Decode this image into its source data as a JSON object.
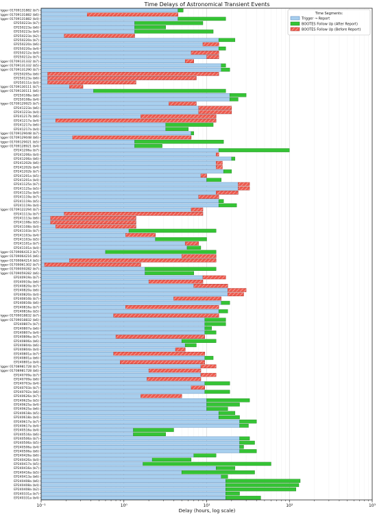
{
  "chart_data": {
    "type": "bar",
    "orientation": "horizontal",
    "title": "Time Delays of Astronomical Transient Events",
    "xlabel": "Delay (hours, log scale)",
    "ylabel": "",
    "x_scale": "log",
    "xlim": [
      0.1,
      1000
    ],
    "x_ticks": [
      0.1,
      1,
      10,
      100,
      1000
    ],
    "x_tick_labels": [
      "10⁻¹",
      "10⁰",
      "10¹",
      "10²",
      "10³"
    ],
    "grid": true,
    "legend": {
      "title": "Time Segments:",
      "position": "top-right",
      "entries": [
        {
          "label": "Trigger → Report",
          "color": "#a8cfee",
          "edge": "#4d7fb3",
          "hatch": false
        },
        {
          "label": "BOOTES Follow Up (After Report)",
          "color": "#35c435",
          "edge": "#1d801d",
          "hatch": false
        },
        {
          "label": "BOOTES Follow Up (Before Report)",
          "color": "#ee5a4e",
          "edge": "#a83228",
          "hatch": true
        }
      ]
    },
    "colors": {
      "report": "#a8cfee",
      "report_edge": "#4d7fb3",
      "after": "#35c435",
      "after_edge": "#1d801d",
      "before": "#ee5a4e",
      "before_edge": "#a83228",
      "hatch": "#f7b8b2"
    },
    "events": [
      {
        "label": "Trigger 01709131882 (b7)",
        "report": 4.5,
        "after": 5.2,
        "before": null
      },
      {
        "label": "Trigger 01709131882 (b6)",
        "report": 4.5,
        "after": null,
        "before": 0.36
      },
      {
        "label": "Trigger 01709131882 (b4)",
        "report": 4.5,
        "after": 17,
        "before": null
      },
      {
        "label": "EP250223a (b7)",
        "report": 1.35,
        "after": 9,
        "before": null
      },
      {
        "label": "EP250223a (b6)",
        "report": 1.35,
        "after": 3.2,
        "before": null
      },
      {
        "label": "EP250223a (b4)",
        "report": 1.35,
        "after": 12,
        "before": null
      },
      {
        "label": "EP250223a (b2)",
        "report": 1.35,
        "after": null,
        "before": 0.19
      },
      {
        "label": "EP250220a (b7)",
        "report": 14,
        "after": 22,
        "before": null
      },
      {
        "label": "EP250220a (b6)",
        "report": 14,
        "after": null,
        "before": 9
      },
      {
        "label": "EP250220a (b4)",
        "report": 14,
        "after": 17,
        "before": null
      },
      {
        "label": "EP250212a (b4)",
        "report": 14,
        "after": null,
        "before": 6.5
      },
      {
        "label": "EP250212a (b7)",
        "report": 14,
        "after": null,
        "before": 10
      },
      {
        "label": "Trigger 01709131332 (b7)",
        "report": 7,
        "after": null,
        "before": 5.5
      },
      {
        "label": "Trigger 01709131332 (b5)",
        "report": 15,
        "after": 17,
        "before": null
      },
      {
        "label": "Trigger 01709131290 (b7)",
        "report": 15,
        "after": 19,
        "before": null
      },
      {
        "label": "EP250205a (b6)",
        "report": 14,
        "after": null,
        "before": 0.12
      },
      {
        "label": "EP250123a (b6)",
        "report": 7.5,
        "after": null,
        "before": 0.12
      },
      {
        "label": "EP250111a (b4)",
        "report": 1.4,
        "after": null,
        "before": 0.12
      },
      {
        "label": "Trigger 01709130111 (b7)",
        "report": 0.32,
        "after": null,
        "before": 0.22
      },
      {
        "label": "Trigger 01709130111 (b6)",
        "report": 0.43,
        "after": 17,
        "before": null
      },
      {
        "label": "EP250108a (b6)",
        "report": 19,
        "after": 30,
        "before": null
      },
      {
        "label": "EP250108a (b4)",
        "report": 19,
        "after": 24,
        "before": null
      },
      {
        "label": "Trigger 01709129925 (b7)",
        "report": 7.5,
        "after": null,
        "before": 3.5
      },
      {
        "label": "EP241223a (b6)",
        "report": 20,
        "after": null,
        "before": 8
      },
      {
        "label": "EP241223a (b4)",
        "report": 20,
        "after": null,
        "before": 8
      },
      {
        "label": "EP241217b (b6)",
        "report": 13,
        "after": null,
        "before": 1.6
      },
      {
        "label": "EP241217a (b4)",
        "report": 13,
        "after": null,
        "before": 0.15
      },
      {
        "label": "EP241217a (b6)",
        "report": 3.2,
        "after": 12,
        "before": null
      },
      {
        "label": "EP241217a (b4)",
        "report": 3.2,
        "after": 6,
        "before": null
      },
      {
        "label": "Trigger 01709129048 (b7)",
        "report": 6.5,
        "after": 7,
        "before": null
      },
      {
        "label": "Trigger 01709129048 (b6)",
        "report": 6.5,
        "after": null,
        "before": 0.24
      },
      {
        "label": "Trigger 01709129021 (b5)",
        "report": 1.35,
        "after": 16,
        "before": null
      },
      {
        "label": "Trigger 01709128921 (b4)",
        "report": 1.35,
        "after": 2.9,
        "before": null
      },
      {
        "label": "EP241206a (b7)",
        "report": 14,
        "after": 100,
        "before": null
      },
      {
        "label": "EP241206a (b4)",
        "report": 14,
        "after": null,
        "before": 13
      },
      {
        "label": "EP241206a (b6)",
        "report": 20,
        "after": 22,
        "before": null
      },
      {
        "label": "EP241202b (b6)",
        "report": 13,
        "after": null,
        "before": 15.5
      },
      {
        "label": "EP241202b (b4)",
        "report": 13,
        "after": null,
        "before": 15.5
      },
      {
        "label": "EP241202b (b7)",
        "report": 16,
        "after": 20,
        "before": null
      },
      {
        "label": "EP241201a (b5)",
        "report": 10,
        "after": null,
        "before": 8.5
      },
      {
        "label": "EP241201a (b4)",
        "report": 10,
        "after": 15,
        "before": null
      },
      {
        "label": "EP241125a (b7)",
        "report": 24,
        "after": null,
        "before": 33
      },
      {
        "label": "EP241125a (b5)",
        "report": 24,
        "after": null,
        "before": 33
      },
      {
        "label": "EP241125a (b4)",
        "report": 24,
        "after": null,
        "before": 13
      },
      {
        "label": "EP241119a (b7)",
        "report": 14,
        "after": null,
        "before": 8
      },
      {
        "label": "EP241119a (b5)",
        "report": 14,
        "after": 16,
        "before": null
      },
      {
        "label": "EP241119a (b4)",
        "report": 14,
        "after": 23,
        "before": null
      },
      {
        "label": "Trigger 01709122294 (b7)",
        "report": 9,
        "after": null,
        "before": 6.5
      },
      {
        "label": "EP241113a (b7)",
        "report": 9,
        "after": null,
        "before": 0.19
      },
      {
        "label": "EP241113a (b6)",
        "report": 1.4,
        "after": null,
        "before": 0.13
      },
      {
        "label": "EP241108a (b5)",
        "report": 1.4,
        "after": null,
        "before": 0.13
      },
      {
        "label": "EP241108a (b4)",
        "report": 1.4,
        "after": null,
        "before": 0.15
      },
      {
        "label": "EP241103a (b7)",
        "report": 1.15,
        "after": 13,
        "before": null
      },
      {
        "label": "EP241103a (b4)",
        "report": 2.4,
        "after": null,
        "before": 1.05
      },
      {
        "label": "EP241103a (b5)",
        "report": 2.4,
        "after": 10,
        "before": null
      },
      {
        "label": "EP241101a (b7)",
        "report": 8,
        "after": null,
        "before": 5.5
      },
      {
        "label": "EP241101a (b4)",
        "report": 5.8,
        "after": 8.5,
        "before": null
      },
      {
        "label": "Trigger 01709064313 (b7)",
        "report": 0.6,
        "after": 13,
        "before": null
      },
      {
        "label": "Trigger 01709064216 (b6)",
        "report": 13,
        "after": null,
        "before": 5
      },
      {
        "label": "Trigger 01709064214 (b5)",
        "report": 13,
        "after": null,
        "before": 0.22
      },
      {
        "label": "Trigger 01709061302 (b7)",
        "report": 1.6,
        "after": null,
        "before": 0.11
      },
      {
        "label": "Trigger 01709059282 (b7)",
        "report": 1.8,
        "after": 13,
        "before": null
      },
      {
        "label": "Trigger 01709059282 (b6)",
        "report": 1.8,
        "after": 7,
        "before": null
      },
      {
        "label": "EP240919a (b7)",
        "report": 9,
        "after": null,
        "before": 17
      },
      {
        "label": "EP240919a (b6)",
        "report": 9,
        "after": null,
        "before": 2
      },
      {
        "label": "EP240820a (b7)",
        "report": 18,
        "after": null,
        "before": 7
      },
      {
        "label": "EP240820a (b6)",
        "report": 18,
        "after": null,
        "before": 30
      },
      {
        "label": "EP240820a (b4)",
        "report": 18,
        "after": null,
        "before": 28
      },
      {
        "label": "EP240816b (b7)",
        "report": 15,
        "after": null,
        "before": 4
      },
      {
        "label": "EP240816b (b6)",
        "report": 15,
        "after": 19,
        "before": null
      },
      {
        "label": "EP240816a (b7)",
        "report": 14,
        "after": null,
        "before": 1.05
      },
      {
        "label": "EP240816a (b5)",
        "report": 14,
        "after": 18,
        "before": null
      },
      {
        "label": "Trigger 01709018832 (b7)",
        "report": 14,
        "after": null,
        "before": 0.75
      },
      {
        "label": "Trigger 01709018832 (b6)",
        "report": 9.5,
        "after": 17,
        "before": null
      },
      {
        "label": "EP240807a (b7)",
        "report": 9.5,
        "after": 17,
        "before": null
      },
      {
        "label": "EP240807a (b6)",
        "report": 9.5,
        "after": 11.5,
        "before": null
      },
      {
        "label": "EP240807a (b4)",
        "report": 9.5,
        "after": 13,
        "before": null
      },
      {
        "label": "EP240806a (b7)",
        "report": 9.5,
        "after": null,
        "before": 0.8
      },
      {
        "label": "EP240806a (b6)",
        "report": 5,
        "after": 13,
        "before": null
      },
      {
        "label": "EP240804a (b6)",
        "report": 5.5,
        "after": 7.5,
        "before": null
      },
      {
        "label": "EP240804a (b4)",
        "report": 5.5,
        "after": null,
        "before": 4.2
      },
      {
        "label": "EP240801a (b7)",
        "report": 9.5,
        "after": null,
        "before": 0.75
      },
      {
        "label": "EP240801a (b6)",
        "report": 9.5,
        "after": 12,
        "before": null
      },
      {
        "label": "EP240801a (b4)",
        "report": 9.5,
        "after": null,
        "before": 0.9
      },
      {
        "label": "Trigger 01708981728 (b7)",
        "report": 8.5,
        "after": null,
        "before": 13
      },
      {
        "label": "Trigger 01708981728 (b6)",
        "report": 8.5,
        "after": null,
        "before": 2
      },
      {
        "label": "EP240709a (b7)",
        "report": 8.5,
        "after": null,
        "before": 13
      },
      {
        "label": "EP240709a (b6)",
        "report": 8.5,
        "after": null,
        "before": 1.9
      },
      {
        "label": "EP240703a (b4)",
        "report": 9.5,
        "after": 19,
        "before": null
      },
      {
        "label": "EP240703a (b7)",
        "report": 9.5,
        "after": null,
        "before": 6.5
      },
      {
        "label": "EP240702a (b6)",
        "report": 9.5,
        "after": 19,
        "before": null
      },
      {
        "label": "EP240626a (b7)",
        "report": 5,
        "after": null,
        "before": 1.6
      },
      {
        "label": "EP240625a (b5)",
        "report": 10,
        "after": 33,
        "before": null
      },
      {
        "label": "EP240625a (b4)",
        "report": 10,
        "after": 25,
        "before": null
      },
      {
        "label": "EP240625a (b6)",
        "report": 10,
        "after": 18,
        "before": null
      },
      {
        "label": "EP240618a (b5)",
        "report": 14,
        "after": 22,
        "before": null
      },
      {
        "label": "EP240618a (b4)",
        "report": 14,
        "after": 25,
        "before": null
      },
      {
        "label": "EP240617a (b7)",
        "report": 25,
        "after": 40,
        "before": null
      },
      {
        "label": "EP240617a (b4)",
        "report": 25,
        "after": 32,
        "before": null
      },
      {
        "label": "EP240516a (b4)",
        "report": 1.3,
        "after": 4,
        "before": null
      },
      {
        "label": "EP240516a (b6)",
        "report": 1.3,
        "after": 3.2,
        "before": null
      },
      {
        "label": "EP240506a (b7)",
        "report": 25,
        "after": 33,
        "before": null
      },
      {
        "label": "EP240506a (b5)",
        "report": 25,
        "after": 38,
        "before": null
      },
      {
        "label": "EP240506a (b4)",
        "report": 25,
        "after": 28,
        "before": null
      },
      {
        "label": "EP240506a (b6)",
        "report": 25,
        "after": 40,
        "before": null
      },
      {
        "label": "EP240426a (b6)",
        "report": 7,
        "after": 13,
        "before": null
      },
      {
        "label": "EP240426a (b4)",
        "report": 2.2,
        "after": 6.5,
        "before": null
      },
      {
        "label": "EP240417a (b5)",
        "report": 1.7,
        "after": 60,
        "before": null
      },
      {
        "label": "EP240416a (b7)",
        "report": 13,
        "after": 22,
        "before": null
      },
      {
        "label": "EP240416a (b5)",
        "report": 5,
        "after": 38,
        "before": null
      },
      {
        "label": "EP240413a (b6)",
        "report": 15,
        "after": 18,
        "before": null
      },
      {
        "label": "EP240408a (b6)",
        "report": 17,
        "after": 135,
        "before": null
      },
      {
        "label": "EP240408a (b4)",
        "report": 17,
        "after": 130,
        "before": null
      },
      {
        "label": "EP240408a (b2)",
        "report": 17,
        "after": 120,
        "before": null
      },
      {
        "label": "EP240331a (b7)",
        "report": 17,
        "after": 25,
        "before": null
      },
      {
        "label": "EP240331a (b4)",
        "report": 17,
        "after": 45,
        "before": null
      }
    ]
  }
}
